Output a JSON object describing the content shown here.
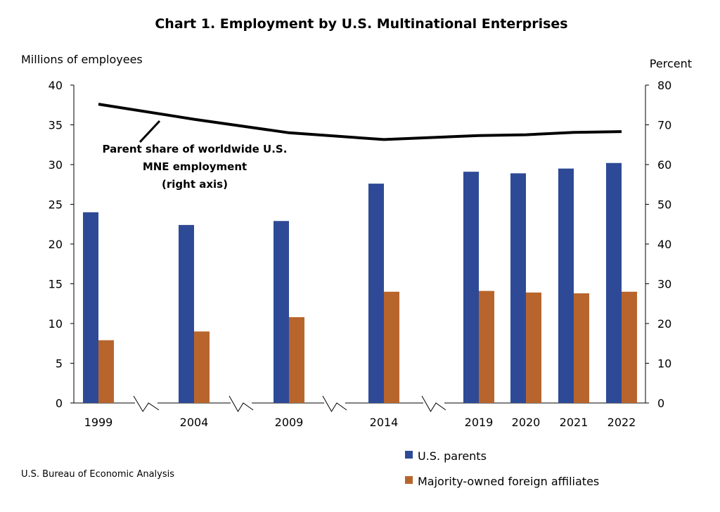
{
  "chart_data": {
    "type": "bar",
    "title": "Chart 1. Employment by U.S. Multinational Enterprises",
    "ylabel_left": "Millions of employees",
    "ylabel_right": "Percent",
    "ylim_left": [
      0,
      40
    ],
    "ylim_right": [
      0,
      80
    ],
    "yticks_left": [
      0,
      5,
      10,
      15,
      20,
      25,
      30,
      35,
      40
    ],
    "yticks_right": [
      0,
      10,
      20,
      30,
      40,
      50,
      60,
      70,
      80
    ],
    "categories": [
      "1999",
      "2004",
      "2009",
      "2014",
      "2019",
      "2020",
      "2021",
      "2022"
    ],
    "series": [
      {
        "name": "U.S. parents",
        "color": "#2E4A97",
        "axis": "left",
        "values": [
          24.0,
          22.4,
          22.9,
          27.6,
          29.1,
          28.9,
          29.5,
          30.2
        ]
      },
      {
        "name": "Majority-owned foreign affiliates",
        "color": "#B8652D",
        "axis": "left",
        "values": [
          7.9,
          9.0,
          10.8,
          14.0,
          14.1,
          13.9,
          13.8,
          14.0
        ]
      }
    ],
    "line": {
      "name": "Parent share of worldwide U.S. MNE employment",
      "axis": "right",
      "color": "#000000",
      "values": [
        75.2,
        71.4,
        68.0,
        66.3,
        67.3,
        67.5,
        68.1,
        68.3
      ]
    },
    "annotation": [
      "Parent share of worldwide U.S.",
      "MNE employment",
      "(right axis)"
    ],
    "axis_breaks_after": [
      "1999",
      "2004",
      "2009",
      "2014"
    ],
    "legend_position": "bottom-right"
  },
  "source": "U.S. Bureau of Economic Analysis"
}
